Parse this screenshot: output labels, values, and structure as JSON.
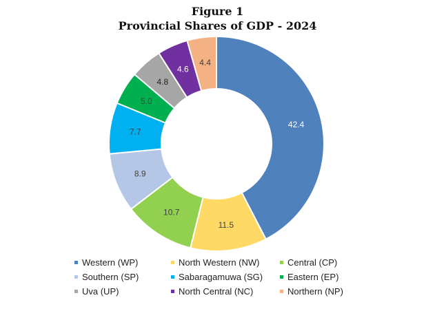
{
  "chart_data": {
    "type": "pie",
    "title_line1": "Figure 1",
    "title_line2": "Provincial Shares of GDP - 2024",
    "donut": true,
    "start_angle_deg": 0,
    "direction": "clockwise",
    "slices": [
      {
        "label": "Western (WP)",
        "value": 42.4,
        "value_label": "42.4",
        "color": "#4f81bd",
        "label_color": "#ffffff"
      },
      {
        "label": "North Western (NW)",
        "value": 11.5,
        "value_label": "11.5",
        "color": "#ffd966",
        "label_color": "#404040"
      },
      {
        "label": "Central (CP)",
        "value": 10.7,
        "value_label": "10.7",
        "color": "#92d050",
        "label_color": "#404040"
      },
      {
        "label": "Southern (SP)",
        "value": 8.9,
        "value_label": "8.9",
        "color": "#b4c7e7",
        "label_color": "#404040"
      },
      {
        "label": "Sabaragamuwa (SG)",
        "value": 7.7,
        "value_label": "7.7",
        "color": "#00b0f0",
        "label_color": "#404040"
      },
      {
        "label": "Eastern (EP)",
        "value": 5.0,
        "value_label": "5.0",
        "color": "#00b050",
        "label_color": "#404040"
      },
      {
        "label": "Uva (UP)",
        "value": 4.8,
        "value_label": "4.8",
        "color": "#a6a6a6",
        "label_color": "#222222"
      },
      {
        "label": "North Central (NC)",
        "value": 4.6,
        "value_label": "4.6",
        "color": "#7030a0",
        "label_color": "#ffffff"
      },
      {
        "label": "Northern (NP)",
        "value": 4.4,
        "value_label": "4.4",
        "color": "#f4b183",
        "label_color": "#404040"
      }
    ]
  }
}
